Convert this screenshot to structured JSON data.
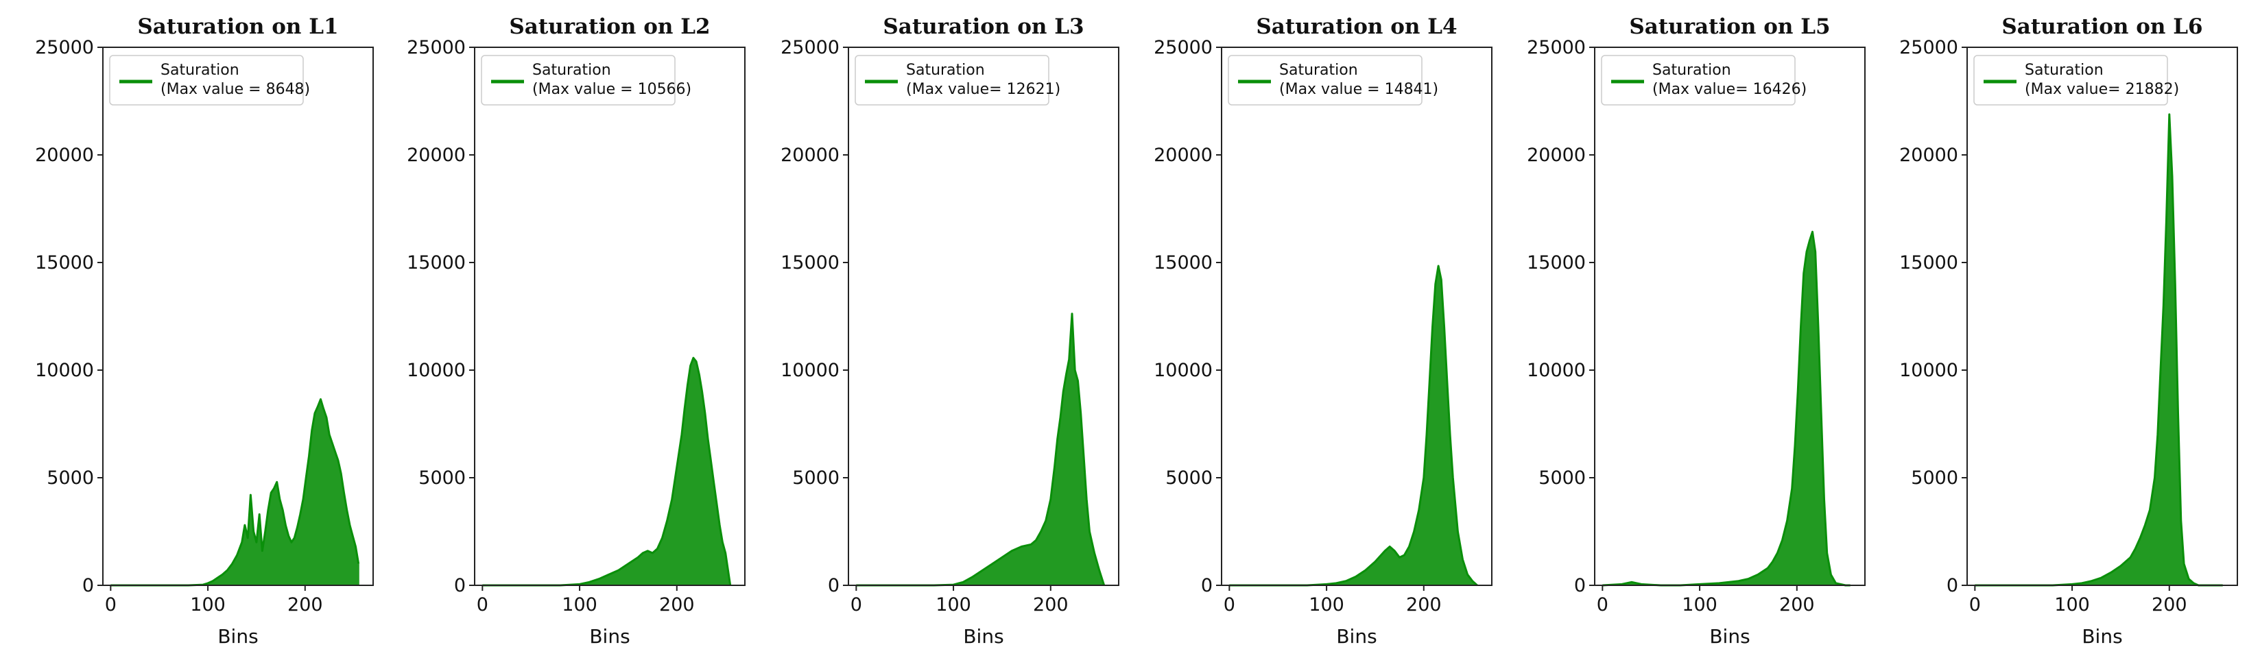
{
  "chart_data": [
    {
      "type": "line",
      "title": "Saturation on L1",
      "xlabel": "Bins",
      "ylabel": "",
      "xlim": [
        -8,
        270
      ],
      "ylim": [
        0,
        25000
      ],
      "xticks": [
        0,
        100,
        200
      ],
      "yticks": [
        0,
        5000,
        10000,
        15000,
        20000,
        25000
      ],
      "legend": {
        "location": "top-left",
        "series_label": "Saturation",
        "note": "(Max value = 8648)"
      },
      "series": [
        {
          "name": "Saturation",
          "color": "#0a8f0a",
          "x": [
            0,
            20,
            40,
            60,
            80,
            95,
            100,
            105,
            110,
            115,
            120,
            125,
            130,
            135,
            138,
            141,
            144,
            147,
            150,
            153,
            156,
            159,
            162,
            165,
            168,
            171,
            174,
            177,
            180,
            183,
            186,
            189,
            192,
            195,
            198,
            201,
            204,
            207,
            210,
            213,
            216,
            219,
            222,
            225,
            228,
            231,
            234,
            237,
            240,
            243,
            246,
            249,
            252,
            255
          ],
          "y": [
            0,
            0,
            0,
            0,
            0,
            30,
            100,
            200,
            350,
            500,
            700,
            1000,
            1400,
            2000,
            2800,
            2200,
            4200,
            2500,
            2000,
            3300,
            1600,
            2500,
            3500,
            4300,
            4500,
            4800,
            4000,
            3500,
            2800,
            2300,
            2000,
            2200,
            2700,
            3300,
            4000,
            5000,
            6000,
            7200,
            8000,
            8300,
            8648,
            8200,
            7800,
            7000,
            6600,
            6200,
            5800,
            5200,
            4300,
            3500,
            2800,
            2300,
            1800,
            1000
          ]
        }
      ]
    },
    {
      "type": "line",
      "title": "Saturation on L2",
      "xlabel": "Bins",
      "ylabel": "",
      "xlim": [
        -8,
        270
      ],
      "ylim": [
        0,
        25000
      ],
      "xticks": [
        0,
        100,
        200
      ],
      "yticks": [
        0,
        5000,
        10000,
        15000,
        20000,
        25000
      ],
      "legend": {
        "location": "top-left",
        "series_label": "Saturation",
        "note": "(Max value = 10566)"
      },
      "series": [
        {
          "name": "Saturation",
          "color": "#0a8f0a",
          "x": [
            0,
            20,
            40,
            60,
            80,
            100,
            110,
            120,
            130,
            140,
            150,
            160,
            165,
            170,
            175,
            180,
            185,
            190,
            195,
            200,
            205,
            208,
            211,
            214,
            217,
            220,
            223,
            226,
            229,
            232,
            235,
            238,
            241,
            244,
            247,
            250,
            255
          ],
          "y": [
            0,
            0,
            0,
            0,
            0,
            50,
            150,
            300,
            500,
            700,
            1000,
            1300,
            1500,
            1600,
            1500,
            1700,
            2200,
            3000,
            4000,
            5500,
            7000,
            8200,
            9300,
            10200,
            10566,
            10400,
            9800,
            9000,
            8000,
            6800,
            5800,
            4800,
            3800,
            2800,
            2000,
            1500,
            0
          ]
        }
      ]
    },
    {
      "type": "line",
      "title": "Saturation on L3",
      "xlabel": "Bins",
      "ylabel": "",
      "xlim": [
        -8,
        270
      ],
      "ylim": [
        0,
        25000
      ],
      "xticks": [
        0,
        100,
        200
      ],
      "yticks": [
        0,
        5000,
        10000,
        15000,
        20000,
        25000
      ],
      "legend": {
        "location": "top-left",
        "series_label": "Saturation",
        "note": "(Max value= 12621)"
      },
      "series": [
        {
          "name": "Saturation",
          "color": "#0a8f0a",
          "x": [
            0,
            20,
            40,
            60,
            80,
            100,
            110,
            120,
            130,
            140,
            150,
            160,
            170,
            180,
            185,
            190,
            195,
            200,
            204,
            207,
            210,
            213,
            216,
            219,
            222,
            225,
            228,
            231,
            234,
            237,
            240,
            245,
            250,
            255
          ],
          "y": [
            0,
            0,
            0,
            0,
            0,
            30,
            150,
            400,
            700,
            1000,
            1300,
            1600,
            1800,
            1900,
            2100,
            2500,
            3000,
            4000,
            5500,
            6800,
            7800,
            9000,
            9800,
            10500,
            12621,
            10000,
            9500,
            8000,
            6000,
            4000,
            2500,
            1500,
            700,
            0
          ]
        }
      ]
    },
    {
      "type": "line",
      "title": "Saturation on L4",
      "xlabel": "Bins",
      "ylabel": "",
      "xlim": [
        -8,
        270
      ],
      "ylim": [
        0,
        25000
      ],
      "xticks": [
        0,
        100,
        200
      ],
      "yticks": [
        0,
        5000,
        10000,
        15000,
        20000,
        25000
      ],
      "legend": {
        "location": "top-left",
        "series_label": "Saturation",
        "note": "(Max value = 14841)"
      },
      "series": [
        {
          "name": "Saturation",
          "color": "#0a8f0a",
          "x": [
            0,
            20,
            40,
            60,
            80,
            100,
            110,
            120,
            130,
            140,
            150,
            160,
            165,
            170,
            175,
            180,
            185,
            190,
            195,
            200,
            203,
            206,
            209,
            212,
            215,
            218,
            221,
            224,
            227,
            230,
            235,
            240,
            245,
            250,
            255
          ],
          "y": [
            0,
            0,
            0,
            0,
            0,
            50,
            100,
            200,
            400,
            700,
            1100,
            1600,
            1800,
            1600,
            1300,
            1400,
            1800,
            2500,
            3500,
            5000,
            7000,
            9500,
            12000,
            14000,
            14841,
            14200,
            12000,
            9500,
            7000,
            5000,
            2500,
            1200,
            500,
            200,
            0
          ]
        }
      ]
    },
    {
      "type": "line",
      "title": "Saturation on L5",
      "xlabel": "Bins",
      "ylabel": "",
      "xlim": [
        -8,
        270
      ],
      "ylim": [
        0,
        25000
      ],
      "xticks": [
        0,
        100,
        200
      ],
      "yticks": [
        0,
        5000,
        10000,
        15000,
        20000,
        25000
      ],
      "legend": {
        "location": "top-left",
        "series_label": "Saturation",
        "note": "(Max value= 16426)"
      },
      "series": [
        {
          "name": "Saturation",
          "color": "#0a8f0a",
          "x": [
            0,
            20,
            30,
            40,
            60,
            80,
            100,
            120,
            140,
            150,
            160,
            170,
            175,
            180,
            185,
            190,
            195,
            198,
            201,
            204,
            207,
            210,
            213,
            216,
            219,
            222,
            225,
            228,
            231,
            235,
            240,
            250,
            255
          ],
          "y": [
            0,
            50,
            150,
            50,
            0,
            0,
            50,
            100,
            200,
            300,
            500,
            800,
            1100,
            1500,
            2100,
            3000,
            4500,
            6500,
            9000,
            12000,
            14500,
            15500,
            16000,
            16426,
            15500,
            12000,
            8000,
            4000,
            1500,
            500,
            100,
            0,
            0
          ]
        }
      ]
    },
    {
      "type": "line",
      "title": "Saturation on L6",
      "xlabel": "Bins",
      "ylabel": "",
      "xlim": [
        -8,
        270
      ],
      "ylim": [
        0,
        25000
      ],
      "xticks": [
        0,
        100,
        200
      ],
      "yticks": [
        0,
        5000,
        10000,
        15000,
        20000,
        25000
      ],
      "legend": {
        "location": "top-left",
        "series_label": "Saturation",
        "note": "(Max value= 21882)"
      },
      "series": [
        {
          "name": "Saturation",
          "color": "#0a8f0a",
          "x": [
            0,
            20,
            40,
            60,
            80,
            100,
            110,
            120,
            130,
            140,
            150,
            160,
            165,
            170,
            175,
            180,
            185,
            188,
            191,
            194,
            197,
            200,
            203,
            206,
            209,
            212,
            215,
            220,
            225,
            230,
            240,
            250,
            255
          ],
          "y": [
            0,
            0,
            0,
            0,
            0,
            50,
            100,
            200,
            350,
            600,
            900,
            1300,
            1700,
            2200,
            2800,
            3500,
            5000,
            7000,
            10000,
            13000,
            17000,
            21882,
            19000,
            14000,
            8000,
            3000,
            1000,
            300,
            100,
            0,
            0,
            0,
            0
          ]
        }
      ]
    }
  ]
}
